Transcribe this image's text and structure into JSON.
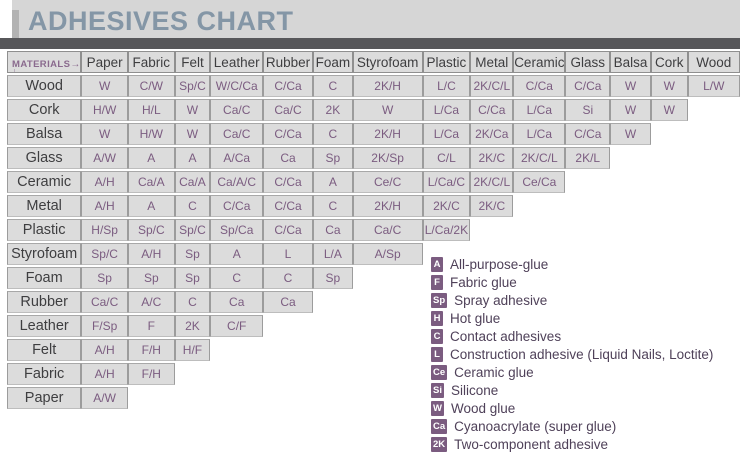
{
  "title": "ADHESIVES CHART",
  "colors": {
    "title_text": "#8496a6",
    "top_band": "#d6d6d6",
    "divider_bar": "#57575a",
    "cell_background": "#dcdcdc",
    "cell_border": "#9c9c9c",
    "code_text": "#7b5c80",
    "label_text": "#3e3e40",
    "legend_badge": "#7b5c80",
    "legend_text": "#4f4159"
  },
  "chart_data": {
    "type": "table",
    "title": "ADHESIVES CHART",
    "corner_label": "MATERIALS",
    "corner_arrow_right": "→",
    "corner_arrow_down": "↓",
    "columns": [
      "Paper",
      "Fabric",
      "Felt",
      "Leather",
      "Rubber",
      "Foam",
      "Styrofoam",
      "Plastic",
      "Metal",
      "Ceramic",
      "Glass",
      "Balsa",
      "Cork",
      "Wood"
    ],
    "rows": [
      {
        "material": "Wood",
        "cells": [
          "W",
          "C/W",
          "Sp/C",
          "W/C/Ca",
          "C/Ca",
          "C",
          "2K/H",
          "L/C",
          "2K/C/L",
          "C/Ca",
          "C/Ca",
          "W",
          "W",
          "L/W"
        ]
      },
      {
        "material": "Cork",
        "cells": [
          "H/W",
          "H/L",
          "W",
          "Ca/C",
          "Ca/C",
          "2K",
          "W",
          "L/Ca",
          "C/Ca",
          "L/Ca",
          "Si",
          "W",
          "W"
        ]
      },
      {
        "material": "Balsa",
        "cells": [
          "W",
          "H/W",
          "W",
          "Ca/C",
          "C/Ca",
          "C",
          "2K/H",
          "L/Ca",
          "2K/Ca",
          "L/Ca",
          "C/Ca",
          "W"
        ]
      },
      {
        "material": "Glass",
        "cells": [
          "A/W",
          "A",
          "A",
          "A/Ca",
          "Ca",
          "Sp",
          "2K/Sp",
          "C/L",
          "2K/C",
          "2K/C/L",
          "2K/L"
        ]
      },
      {
        "material": "Ceramic",
        "cells": [
          "A/H",
          "Ca/A",
          "Ca/A",
          "Ca/A/C",
          "C/Ca",
          "A",
          "Ce/C",
          "L/Ca/C",
          "2K/C/L",
          "Ce/Ca"
        ]
      },
      {
        "material": "Metal",
        "cells": [
          "A/H",
          "A",
          "C",
          "C/Ca",
          "C/Ca",
          "C",
          "2K/H",
          "2K/C",
          "2K/C"
        ]
      },
      {
        "material": "Plastic",
        "cells": [
          "H/Sp",
          "Sp/C",
          "Sp/C",
          "Sp/Ca",
          "C/Ca",
          "Ca",
          "Ca/C",
          "L/Ca/2K"
        ]
      },
      {
        "material": "Styrofoam",
        "cells": [
          "Sp/C",
          "A/H",
          "Sp",
          "A",
          "L",
          "L/A",
          "A/Sp"
        ]
      },
      {
        "material": "Foam",
        "cells": [
          "Sp",
          "Sp",
          "Sp",
          "C",
          "C",
          "Sp"
        ]
      },
      {
        "material": "Rubber",
        "cells": [
          "Ca/C",
          "A/C",
          "C",
          "Ca",
          "Ca"
        ]
      },
      {
        "material": "Leather",
        "cells": [
          "F/Sp",
          "F",
          "2K",
          "C/F"
        ]
      },
      {
        "material": "Felt",
        "cells": [
          "A/H",
          "F/H",
          "H/F"
        ]
      },
      {
        "material": "Fabric",
        "cells": [
          "A/H",
          "F/H"
        ]
      },
      {
        "material": "Paper",
        "cells": [
          "A/W"
        ]
      }
    ],
    "legend": [
      {
        "code": "A",
        "label": "All-purpose-glue"
      },
      {
        "code": "F",
        "label": "Fabric glue"
      },
      {
        "code": "Sp",
        "label": "Spray adhesive"
      },
      {
        "code": "H",
        "label": "Hot glue"
      },
      {
        "code": "C",
        "label": "Contact adhesives"
      },
      {
        "code": "L",
        "label": "Construction adhesive (Liquid Nails, Loctite)"
      },
      {
        "code": "Ce",
        "label": "Ceramic glue"
      },
      {
        "code": "Si",
        "label": "Silicone"
      },
      {
        "code": "W",
        "label": "Wood glue"
      },
      {
        "code": "Ca",
        "label": "Cyanoacrylate (super glue)"
      },
      {
        "code": "2K",
        "label": "Two-component adhesive"
      }
    ]
  }
}
